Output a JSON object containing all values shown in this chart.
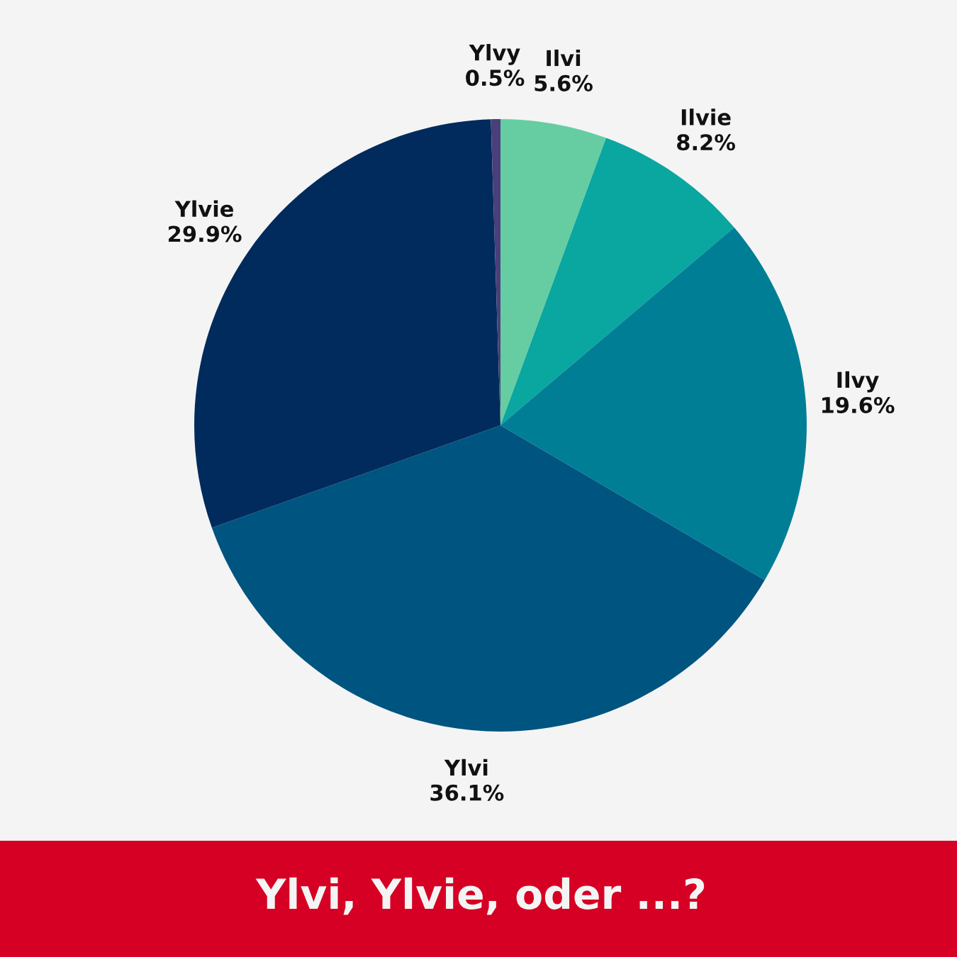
{
  "chart_data": {
    "type": "pie",
    "title": "Ylvi, Ylvie, oder ...?",
    "categories": [
      "Ilvi",
      "Ilvie",
      "Ilvy",
      "Ylvi",
      "Ylvie",
      "Ylvy"
    ],
    "values": [
      5.6,
      8.2,
      19.6,
      36.1,
      29.9,
      0.5
    ],
    "value_labels": [
      "5.6%",
      "8.2%",
      "19.6%",
      "36.1%",
      "29.9%",
      "0.5%"
    ],
    "colors": [
      "#66cda3",
      "#0aa6a0",
      "#007e95",
      "#005480",
      "#002b5c",
      "#4a3f7a"
    ]
  }
}
